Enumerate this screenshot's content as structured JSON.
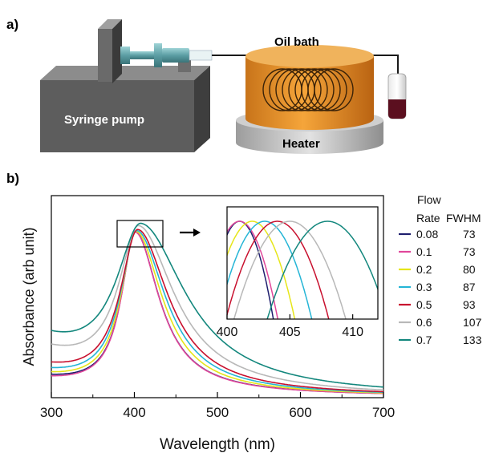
{
  "panel_a": {
    "label": "a)",
    "pump_label": "Syringe pump",
    "bath_label": "Oil bath",
    "heater_label": "Heater"
  },
  "panel_b": {
    "label": "b)",
    "legend": {
      "header_flow": "Flow",
      "header_rate": "Rate",
      "header_fwhm": "FWHM"
    }
  },
  "chart_data": [
    {
      "type": "line",
      "title": "",
      "xlabel": "Wavelength (nm)",
      "ylabel": "Absorbance (arb unit)",
      "xlim": [
        300,
        700
      ],
      "xticks": [
        300,
        400,
        500,
        600,
        700
      ],
      "grid": false,
      "legend_placement": "right-outside",
      "series": [
        {
          "name": "0.08",
          "fwhm": "73",
          "color": "#1f1f6e",
          "peak": 401,
          "fwhm_nm": 73,
          "base": 0.1
        },
        {
          "name": "0.1",
          "fwhm": "73",
          "color": "#e0479a",
          "peak": 401,
          "fwhm_nm": 73,
          "base": 0.09
        },
        {
          "name": "0.2",
          "fwhm": "80",
          "color": "#e6e619",
          "peak": 402,
          "fwhm_nm": 80,
          "base": 0.11
        },
        {
          "name": "0.3",
          "fwhm": "87",
          "color": "#25b5d6",
          "peak": 403,
          "fwhm_nm": 87,
          "base": 0.13
        },
        {
          "name": "0.5",
          "fwhm": "93",
          "color": "#c8102e",
          "peak": 404,
          "fwhm_nm": 93,
          "base": 0.16
        },
        {
          "name": "0.6",
          "fwhm": "107",
          "color": "#b8b8b8",
          "peak": 405,
          "fwhm_nm": 107,
          "base": 0.26
        },
        {
          "name": "0.7",
          "fwhm": "133",
          "color": "#13877d",
          "peak": 408,
          "fwhm_nm": 133,
          "base": 0.32
        }
      ]
    },
    {
      "type": "line",
      "title": "",
      "xlabel": "",
      "ylabel": "",
      "xlim": [
        400,
        412
      ],
      "xticks": [
        400,
        405,
        410
      ],
      "grid": false,
      "note_series": "zoom of peak region, same series as main plot"
    }
  ]
}
